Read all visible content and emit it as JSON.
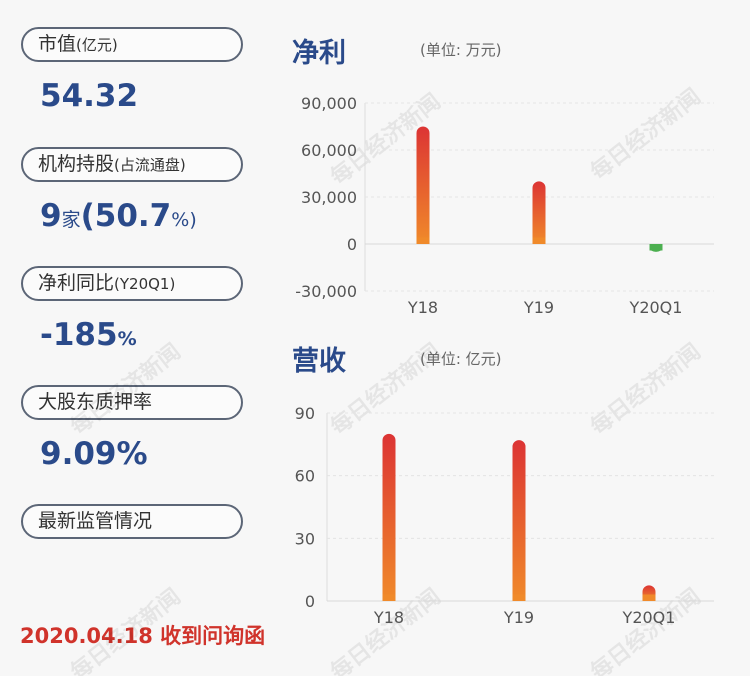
{
  "sidebar": {
    "market_cap": {
      "label": "市值",
      "sub": "(亿元)",
      "value": "54.32"
    },
    "institutions": {
      "label": "机构持股",
      "sub": "(占流通盘)",
      "count": "9",
      "count_unit": "家",
      "paren_open": "(",
      "pct": "50.7",
      "pct_unit": "%)"
    },
    "profit_yoy": {
      "label": "净利同比",
      "sub": "(Y20Q1)",
      "value": "-185",
      "unit": "%"
    },
    "pledge": {
      "label": "大股东质押率",
      "value": "9.09%"
    },
    "supervision": {
      "label": "最新监管情况"
    }
  },
  "footer": "2020.04.18 收到问询函",
  "watermark": "每日经济新闻",
  "chart_data": [
    {
      "type": "bar",
      "title": "净利",
      "unit_label": "(单位: 万元)",
      "categories": [
        "Y18",
        "Y19",
        "Y20Q1"
      ],
      "values": [
        75000,
        40000,
        -5000
      ],
      "ylim": [
        -30000,
        90000
      ],
      "yticks": [
        90000,
        60000,
        30000,
        0,
        -30000
      ],
      "ytick_labels": [
        "90,000",
        "60,000",
        "30,000",
        "0",
        "-30,000"
      ],
      "colors": {
        "positive_top": "#dc3434",
        "positive_bottom": "#f08a2a",
        "negative": "#4caf50"
      },
      "grid": true
    },
    {
      "type": "bar",
      "title": "营收",
      "unit_label": "(单位: 亿元)",
      "categories": [
        "Y18",
        "Y19",
        "Y20Q1"
      ],
      "values": [
        80,
        77,
        7.5
      ],
      "ylim": [
        0,
        90
      ],
      "yticks": [
        90,
        60,
        30,
        0
      ],
      "ytick_labels": [
        "90",
        "60",
        "30",
        "0"
      ],
      "colors": {
        "positive_top": "#dc3434",
        "positive_bottom": "#f08a2a"
      },
      "grid": true
    }
  ]
}
